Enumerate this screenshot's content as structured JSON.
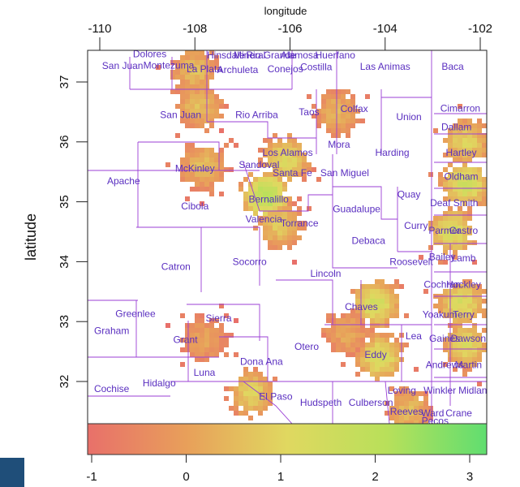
{
  "chart_data": {
    "type": "heatmap",
    "title": "",
    "xlabel": "longitude",
    "ylabel": "latitude",
    "xlim": [
      -110,
      -102
    ],
    "ylim": [
      31.3,
      37.5
    ],
    "x_ticks": [
      -110,
      -108,
      -106,
      -104,
      -102
    ],
    "y_ticks": [
      32,
      33,
      34,
      35,
      36,
      37
    ],
    "x_tick_labels": [
      "-110",
      "-108",
      "-106",
      "-104",
      "-102"
    ],
    "y_tick_labels": [
      "32",
      "33",
      "34",
      "35",
      "36",
      "37"
    ],
    "colorbar": {
      "range": [
        -1,
        3.2
      ],
      "ticks": [
        -1,
        0,
        1,
        2,
        3
      ],
      "tick_labels": [
        "-1",
        "0",
        "1",
        "2",
        "3"
      ],
      "colors": [
        "#e8706a",
        "#e8a05a",
        "#e0d860",
        "#b8e05a",
        "#60de70"
      ]
    },
    "region_color": "#9b3fd6",
    "clusters": [
      {
        "lon": -106.5,
        "lat": 35.1,
        "value": 2.2
      },
      {
        "lon": -106.1,
        "lat": 35.7,
        "value": 1.2
      },
      {
        "lon": -106.2,
        "lat": 34.6,
        "value": 0.8
      },
      {
        "lon": -106.8,
        "lat": 31.8,
        "value": 1.0
      },
      {
        "lon": -102.6,
        "lat": 34.5,
        "value": 1.4
      },
      {
        "lon": -102.3,
        "lat": 35.3,
        "value": 1.6
      },
      {
        "lon": -102.4,
        "lat": 33.3,
        "value": 1.3
      },
      {
        "lon": -102.3,
        "lat": 32.6,
        "value": 1.2
      },
      {
        "lon": -102.3,
        "lat": 36.0,
        "value": 1.0
      },
      {
        "lon": -104.2,
        "lat": 33.3,
        "value": 1.5
      },
      {
        "lon": -104.1,
        "lat": 32.4,
        "value": 1.4
      },
      {
        "lon": -104.8,
        "lat": 32.8,
        "value": 0.2
      },
      {
        "lon": -107.9,
        "lat": 36.6,
        "value": 0.6
      },
      {
        "lon": -107.8,
        "lat": 35.6,
        "value": 0.6
      },
      {
        "lon": -105.0,
        "lat": 36.5,
        "value": 0.4
      },
      {
        "lon": -108.0,
        "lat": 37.2,
        "value": 0.6
      },
      {
        "lon": -107.8,
        "lat": 32.7,
        "value": 0.1
      },
      {
        "lon": -103.5,
        "lat": 31.5,
        "value": 0.6
      }
    ],
    "labels": [
      {
        "text": "Dolores",
        "lon": -108.95,
        "lat": 37.47
      },
      {
        "text": "San Juan",
        "lon": -109.52,
        "lat": 37.27
      },
      {
        "text": "Montezuma",
        "lon": -108.55,
        "lat": 37.28
      },
      {
        "text": "La Plata",
        "lon": -107.8,
        "lat": 37.22
      },
      {
        "text": "Hinsdale",
        "lon": -107.35,
        "lat": 37.45
      },
      {
        "text": "Mineral",
        "lon": -106.85,
        "lat": 37.45
      },
      {
        "text": "Rio Grande",
        "lon": -106.4,
        "lat": 37.45
      },
      {
        "text": "Alamosa",
        "lon": -105.8,
        "lat": 37.45
      },
      {
        "text": "Huerfano",
        "lon": -105.05,
        "lat": 37.45
      },
      {
        "text": "Archuleta",
        "lon": -107.1,
        "lat": 37.2
      },
      {
        "text": "Conejos",
        "lon": -106.1,
        "lat": 37.22
      },
      {
        "text": "Costilla",
        "lon": -105.45,
        "lat": 37.25
      },
      {
        "text": "Las Animas",
        "lon": -104.0,
        "lat": 37.26
      },
      {
        "text": "Baca",
        "lon": -102.58,
        "lat": 37.26
      },
      {
        "text": "Cimarron",
        "lon": -102.42,
        "lat": 36.56
      },
      {
        "text": "San Juan",
        "lon": -108.3,
        "lat": 36.45
      },
      {
        "text": "Rio Arriba",
        "lon": -106.7,
        "lat": 36.45
      },
      {
        "text": "Taos",
        "lon": -105.6,
        "lat": 36.5
      },
      {
        "text": "Colfax",
        "lon": -104.65,
        "lat": 36.55
      },
      {
        "text": "Union",
        "lon": -103.5,
        "lat": 36.42
      },
      {
        "text": "Dallam",
        "lon": -102.5,
        "lat": 36.25
      },
      {
        "text": "Mora",
        "lon": -104.97,
        "lat": 35.96
      },
      {
        "text": "Los Alamos",
        "lon": -106.05,
        "lat": 35.82
      },
      {
        "text": "Harding",
        "lon": -103.85,
        "lat": 35.82
      },
      {
        "text": "Hartley",
        "lon": -102.4,
        "lat": 35.82
      },
      {
        "text": "Sandoval",
        "lon": -106.65,
        "lat": 35.62
      },
      {
        "text": "McKinley",
        "lon": -108.0,
        "lat": 35.56
      },
      {
        "text": "Santa Fe",
        "lon": -105.95,
        "lat": 35.48
      },
      {
        "text": "San Miguel",
        "lon": -104.85,
        "lat": 35.48
      },
      {
        "text": "Apache",
        "lon": -109.5,
        "lat": 35.35
      },
      {
        "text": "Oldham",
        "lon": -102.4,
        "lat": 35.42
      },
      {
        "text": "Quay",
        "lon": -103.5,
        "lat": 35.12
      },
      {
        "text": "Deaf Smith",
        "lon": -102.55,
        "lat": 34.98
      },
      {
        "text": "Bernalillo",
        "lon": -106.45,
        "lat": 35.04
      },
      {
        "text": "Cibola",
        "lon": -108.0,
        "lat": 34.93
      },
      {
        "text": "Guadalupe",
        "lon": -104.6,
        "lat": 34.88
      },
      {
        "text": "Valencia",
        "lon": -106.55,
        "lat": 34.71
      },
      {
        "text": "Torrance",
        "lon": -105.8,
        "lat": 34.64
      },
      {
        "text": "Curry",
        "lon": -103.35,
        "lat": 34.6
      },
      {
        "text": "Parmer",
        "lon": -102.75,
        "lat": 34.52
      },
      {
        "text": "Castro",
        "lon": -102.35,
        "lat": 34.52
      },
      {
        "text": "Debaca",
        "lon": -104.35,
        "lat": 34.35
      },
      {
        "text": "Roosevelt",
        "lon": -103.45,
        "lat": 34.0
      },
      {
        "text": "Bailey",
        "lon": -102.8,
        "lat": 34.08
      },
      {
        "text": "Lamb",
        "lon": -102.35,
        "lat": 34.06
      },
      {
        "text": "Catron",
        "lon": -108.4,
        "lat": 33.92
      },
      {
        "text": "Socorro",
        "lon": -106.85,
        "lat": 34.0
      },
      {
        "text": "Lincoln",
        "lon": -105.25,
        "lat": 33.8
      },
      {
        "text": "Cochran",
        "lon": -102.8,
        "lat": 33.62
      },
      {
        "text": "Hockley",
        "lon": -102.35,
        "lat": 33.62
      },
      {
        "text": "Chaves",
        "lon": -104.5,
        "lat": 33.25
      },
      {
        "text": "Greenlee",
        "lon": -109.25,
        "lat": 33.13
      },
      {
        "text": "Sierra",
        "lon": -107.5,
        "lat": 33.06
      },
      {
        "text": "Yoakum",
        "lon": -102.85,
        "lat": 33.12
      },
      {
        "text": "Terry",
        "lon": -102.35,
        "lat": 33.12
      },
      {
        "text": "Graham",
        "lon": -109.75,
        "lat": 32.85
      },
      {
        "text": "Grant",
        "lon": -108.2,
        "lat": 32.7
      },
      {
        "text": "Lea",
        "lon": -103.4,
        "lat": 32.76
      },
      {
        "text": "Gaines",
        "lon": -102.75,
        "lat": 32.72
      },
      {
        "text": "Dawson",
        "lon": -102.25,
        "lat": 32.72
      },
      {
        "text": "Otero",
        "lon": -105.65,
        "lat": 32.58
      },
      {
        "text": "Eddy",
        "lon": -104.2,
        "lat": 32.45
      },
      {
        "text": "Andrews",
        "lon": -102.75,
        "lat": 32.28
      },
      {
        "text": "Martin",
        "lon": -102.25,
        "lat": 32.28
      },
      {
        "text": "Dona Ana",
        "lon": -106.6,
        "lat": 32.33
      },
      {
        "text": "Luna",
        "lon": -107.8,
        "lat": 32.15
      },
      {
        "text": "Hidalgo",
        "lon": -108.75,
        "lat": 31.97
      },
      {
        "text": "Cochise",
        "lon": -109.75,
        "lat": 31.88
      },
      {
        "text": "Loving",
        "lon": -103.65,
        "lat": 31.85
      },
      {
        "text": "Winkler",
        "lon": -102.85,
        "lat": 31.85
      },
      {
        "text": "Midland",
        "lon": -102.1,
        "lat": 31.85
      },
      {
        "text": "El Paso",
        "lon": -106.3,
        "lat": 31.75
      },
      {
        "text": "Hudspeth",
        "lon": -105.35,
        "lat": 31.65
      },
      {
        "text": "Culberson",
        "lon": -104.3,
        "lat": 31.65
      },
      {
        "text": "Reeves",
        "lon": -103.55,
        "lat": 31.5
      },
      {
        "text": "Ward",
        "lon": -103.0,
        "lat": 31.47
      },
      {
        "text": "Crane",
        "lon": -102.45,
        "lat": 31.47
      },
      {
        "text": "Pecos",
        "lon": -102.95,
        "lat": 31.34
      }
    ]
  }
}
